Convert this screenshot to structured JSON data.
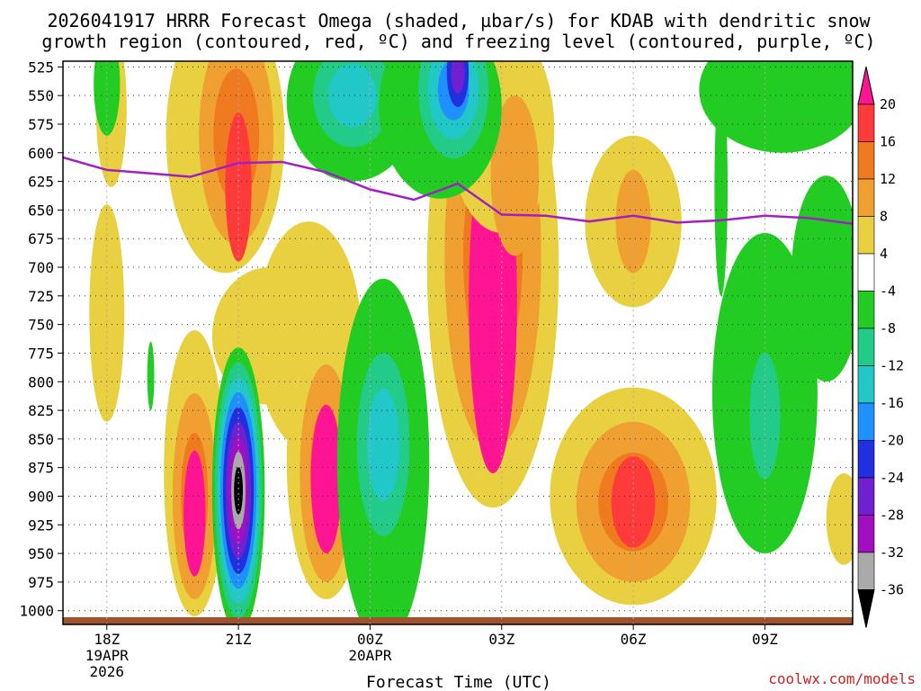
{
  "chart_data": {
    "type": "heatmap",
    "title_line1": "2026041917 HRRR Forecast Omega (shaded, µbar/s) for KDAB with dendritic snow",
    "title_line2": "growth region (contoured, red, ºC) and freezing level (contoured, purple, ºC)",
    "xlabel": "Forecast Time (UTC)",
    "credit": "coolwx.com/models",
    "x_range_hours": [
      0,
      18
    ],
    "x_ticks": [
      {
        "hour": 1,
        "label": "18Z",
        "sub1": "19APR",
        "sub2": "2026"
      },
      {
        "hour": 4,
        "label": "21Z",
        "sub1": "",
        "sub2": ""
      },
      {
        "hour": 7,
        "label": "00Z",
        "sub1": "20APR",
        "sub2": ""
      },
      {
        "hour": 10,
        "label": "03Z",
        "sub1": "",
        "sub2": ""
      },
      {
        "hour": 13,
        "label": "06Z",
        "sub1": "",
        "sub2": ""
      },
      {
        "hour": 16,
        "label": "09Z",
        "sub1": "",
        "sub2": ""
      }
    ],
    "y_ticks": [
      "525",
      "550",
      "575",
      "600",
      "625",
      "650",
      "675",
      "700",
      "725",
      "750",
      "775",
      "800",
      "825",
      "850",
      "875",
      "900",
      "925",
      "950",
      "975",
      "1000"
    ],
    "y_range_hpa": [
      520,
      1012
    ],
    "colorbar_labels": [
      "20",
      "16",
      "12",
      "8",
      "4",
      "-4",
      "-8",
      "-12",
      "-16",
      "-20",
      "-24",
      "-28",
      "-32",
      "-36"
    ],
    "colorbar_colors": [
      "#ff1493",
      "#ff3a3a",
      "#f07a20",
      "#f0a030",
      "#e8d040",
      "#ffffff",
      "#22cc22",
      "#22cc88",
      "#22c8c8",
      "#1e90ff",
      "#2030e0",
      "#7020d0",
      "#a010c0",
      "#aaaaaa",
      "#000000"
    ],
    "freezing_level": {
      "color": "#a020c0",
      "points": [
        {
          "x": 0.0,
          "y": 604
        },
        {
          "x": 1.0,
          "y": 615
        },
        {
          "x": 2.0,
          "y": 618
        },
        {
          "x": 2.9,
          "y": 621
        },
        {
          "x": 3.0,
          "y": 620
        },
        {
          "x": 4.0,
          "y": 609
        },
        {
          "x": 5.0,
          "y": 608
        },
        {
          "x": 6.0,
          "y": 617
        },
        {
          "x": 7.0,
          "y": 632
        },
        {
          "x": 8.0,
          "y": 641
        },
        {
          "x": 9.0,
          "y": 627
        },
        {
          "x": 10.0,
          "y": 654
        },
        {
          "x": 11.0,
          "y": 655
        },
        {
          "x": 12.0,
          "y": 660
        },
        {
          "x": 13.0,
          "y": 655
        },
        {
          "x": 14.0,
          "y": 661
        },
        {
          "x": 15.0,
          "y": 659
        },
        {
          "x": 16.0,
          "y": 655
        },
        {
          "x": 17.0,
          "y": 657
        },
        {
          "x": 18.0,
          "y": 662
        }
      ]
    },
    "omega_blobs": [
      {
        "x": 1.1,
        "y": 560,
        "rx": 0.35,
        "ry": 70,
        "levels": [
          4
        ]
      },
      {
        "x": 3.7,
        "y": 585,
        "rx": 1.35,
        "ry": 120,
        "levels": [
          4
        ]
      },
      {
        "x": 3.95,
        "y": 585,
        "rx": 0.85,
        "ry": 95,
        "levels": [
          8,
          12
        ]
      },
      {
        "x": 4.0,
        "y": 630,
        "rx": 0.3,
        "ry": 65,
        "levels": [
          16
        ]
      },
      {
        "x": 5.6,
        "y": 760,
        "rx": 1.2,
        "ry": 100,
        "levels": [
          4
        ]
      },
      {
        "x": 4.7,
        "y": 760,
        "rx": 1.3,
        "ry": 60,
        "levels": [
          4
        ]
      },
      {
        "x": 1.0,
        "y": 740,
        "rx": 0.4,
        "ry": 95,
        "levels": [
          4
        ]
      },
      {
        "x": 3.0,
        "y": 880,
        "rx": 0.7,
        "ry": 125,
        "levels": [
          4
        ]
      },
      {
        "x": 3.0,
        "y": 900,
        "rx": 0.5,
        "ry": 90,
        "levels": [
          8,
          12
        ]
      },
      {
        "x": 3.0,
        "y": 915,
        "rx": 0.25,
        "ry": 55,
        "levels": [
          20
        ]
      },
      {
        "x": 6.0,
        "y": 870,
        "rx": 0.9,
        "ry": 120,
        "levels": [
          4
        ]
      },
      {
        "x": 6.0,
        "y": 880,
        "rx": 0.6,
        "ry": 95,
        "levels": [
          8,
          12
        ]
      },
      {
        "x": 6.0,
        "y": 885,
        "rx": 0.35,
        "ry": 65,
        "levels": [
          20
        ]
      },
      {
        "x": 9.8,
        "y": 700,
        "rx": 1.5,
        "ry": 210,
        "levels": [
          4
        ]
      },
      {
        "x": 9.8,
        "y": 690,
        "rx": 1.1,
        "ry": 170,
        "levels": [
          8,
          12
        ]
      },
      {
        "x": 9.8,
        "y": 730,
        "rx": 0.55,
        "ry": 150,
        "levels": [
          20
        ]
      },
      {
        "x": 10.0,
        "y": 580,
        "rx": 1.2,
        "ry": 90,
        "levels": [
          4
        ]
      },
      {
        "x": 10.3,
        "y": 620,
        "rx": 0.55,
        "ry": 70,
        "levels": [
          8
        ]
      },
      {
        "x": 13.0,
        "y": 660,
        "rx": 1.1,
        "ry": 75,
        "levels": [
          4
        ]
      },
      {
        "x": 13.0,
        "y": 660,
        "rx": 0.4,
        "ry": 45,
        "levels": [
          8
        ]
      },
      {
        "x": 13.0,
        "y": 900,
        "rx": 1.9,
        "ry": 95,
        "levels": [
          4
        ]
      },
      {
        "x": 13.0,
        "y": 905,
        "rx": 1.3,
        "ry": 70,
        "levels": [
          8,
          12
        ]
      },
      {
        "x": 13.0,
        "y": 905,
        "rx": 0.5,
        "ry": 40,
        "levels": [
          16
        ]
      },
      {
        "x": 17.8,
        "y": 920,
        "rx": 0.4,
        "ry": 40,
        "levels": [
          4
        ]
      }
    ],
    "omega_neg_blobs": [
      {
        "x": 6.6,
        "y": 555,
        "rx": 1.5,
        "ry": 70,
        "levels": [
          -4
        ]
      },
      {
        "x": 6.6,
        "y": 550,
        "rx": 0.9,
        "ry": 45,
        "levels": [
          -8,
          -12
        ]
      },
      {
        "x": 8.6,
        "y": 560,
        "rx": 1.4,
        "ry": 80,
        "levels": [
          -4
        ]
      },
      {
        "x": 8.9,
        "y": 545,
        "rx": 0.8,
        "ry": 60,
        "levels": [
          -8,
          -12,
          -16
        ]
      },
      {
        "x": 9.0,
        "y": 530,
        "rx": 0.25,
        "ry": 30,
        "levels": [
          -20,
          -24
        ]
      },
      {
        "x": 1.0,
        "y": 540,
        "rx": 0.3,
        "ry": 45,
        "levels": [
          -4
        ]
      },
      {
        "x": 7.3,
        "y": 870,
        "rx": 1.05,
        "ry": 160,
        "levels": [
          -4
        ]
      },
      {
        "x": 7.3,
        "y": 855,
        "rx": 0.6,
        "ry": 80,
        "levels": [
          -8,
          -12
        ]
      },
      {
        "x": 2.0,
        "y": 795,
        "rx": 0.08,
        "ry": 30,
        "levels": [
          -4
        ]
      },
      {
        "x": 4.0,
        "y": 895,
        "rx": 0.6,
        "ry": 125,
        "levels": [
          -4,
          -8,
          -12,
          -16,
          -20,
          -24,
          -28,
          -32,
          -36
        ]
      },
      {
        "x": 16.0,
        "y": 810,
        "rx": 1.2,
        "ry": 140,
        "levels": [
          -4
        ]
      },
      {
        "x": 16.0,
        "y": 830,
        "rx": 0.35,
        "ry": 55,
        "levels": [
          -8
        ]
      },
      {
        "x": 17.4,
        "y": 710,
        "rx": 0.8,
        "ry": 90,
        "levels": [
          -4
        ]
      },
      {
        "x": 16.4,
        "y": 545,
        "rx": 1.9,
        "ry": 55,
        "levels": [
          -4
        ]
      },
      {
        "x": 15.0,
        "y": 630,
        "rx": 0.15,
        "ry": 95,
        "levels": [
          -4
        ]
      }
    ]
  }
}
